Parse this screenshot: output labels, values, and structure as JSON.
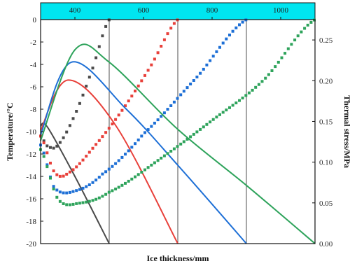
{
  "chart_data": {
    "type": "line",
    "xlabel": "Ice thickness/mm",
    "ylabel_left": "Temperature/°C",
    "ylabel_right": "Thermal stress/MPa",
    "x_range": [
      300,
      1100
    ],
    "y_left_range": [
      -20,
      0
    ],
    "y_right_range": [
      0,
      0.275
    ],
    "top_ticks": [
      "400",
      "600",
      "800",
      "1000"
    ],
    "top_tick_values": [
      400,
      600,
      800,
      1000
    ],
    "left_ticks": [
      "0",
      "-2",
      "-4",
      "-6",
      "-8",
      "-10",
      "-12",
      "-14",
      "-16",
      "-18",
      "-20"
    ],
    "left_tick_values": [
      0,
      -2,
      -4,
      -6,
      -8,
      -10,
      -12,
      -14,
      -16,
      -18,
      -20
    ],
    "right_ticks": [
      "0.25",
      "0.20",
      "0.15",
      "0.10",
      "0.05",
      "0.00"
    ],
    "right_tick_values": [
      0.25,
      0.2,
      0.15,
      0.1,
      0.05,
      0.0
    ],
    "vertical_lines_x": [
      500,
      700,
      900
    ],
    "top_band_color": "#00e5f0",
    "series": [
      {
        "color": "#4a4a4a",
        "line": [
          [
            300,
            -9.5
          ],
          [
            320,
            -9.6
          ],
          [
            400,
            -14
          ],
          [
            500,
            -20
          ]
        ],
        "markers": [
          [
            300,
            -10.4
          ],
          [
            320,
            -11.3
          ],
          [
            350,
            -11.2
          ],
          [
            400,
            -8.5
          ],
          [
            450,
            -4.5
          ],
          [
            500,
            0
          ]
        ]
      },
      {
        "color": "#e8403a",
        "line": [
          [
            300,
            -9.9
          ],
          [
            380,
            -5.4
          ],
          [
            520,
            -9.5
          ],
          [
            700,
            -20
          ]
        ],
        "markers": [
          [
            300,
            -10.4
          ],
          [
            340,
            -13.6
          ],
          [
            380,
            -13.7
          ],
          [
            460,
            -11.2
          ],
          [
            540,
            -8.0
          ],
          [
            620,
            -4.2
          ],
          [
            700,
            0
          ]
        ]
      },
      {
        "color": "#1d6fd6",
        "line": [
          [
            300,
            -10.3
          ],
          [
            390,
            -3.8
          ],
          [
            550,
            -8.0
          ],
          [
            700,
            -13.0
          ],
          [
            900,
            -20
          ]
        ],
        "markers": [
          [
            300,
            -11.2
          ],
          [
            340,
            -15.0
          ],
          [
            400,
            -15.3
          ],
          [
            480,
            -13.8
          ],
          [
            600,
            -10.2
          ],
          [
            760,
            -5.0
          ],
          [
            900,
            0
          ]
        ]
      },
      {
        "color": "#2ea35b",
        "line": [
          [
            300,
            -10.8
          ],
          [
            400,
            -2.7
          ],
          [
            500,
            -3.8
          ],
          [
            700,
            -9.8
          ],
          [
            900,
            -14.8
          ],
          [
            1100,
            -20
          ]
        ],
        "markers": [
          [
            300,
            -11.6
          ],
          [
            350,
            -16.0
          ],
          [
            410,
            -16.4
          ],
          [
            500,
            -15.4
          ],
          [
            650,
            -12.4
          ],
          [
            800,
            -9.0
          ],
          [
            950,
            -5.4
          ],
          [
            1100,
            0
          ]
        ]
      }
    ]
  }
}
